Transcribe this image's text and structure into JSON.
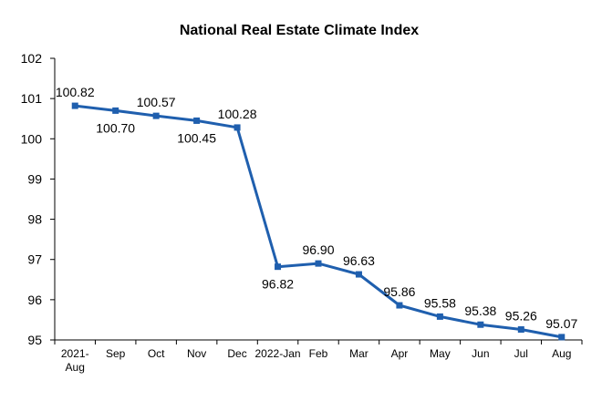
{
  "chart_data": {
    "type": "line",
    "title": "National Real Estate Climate Index",
    "xlabel": "",
    "ylabel": "",
    "ylim": [
      95,
      102
    ],
    "yticks": [
      95,
      96,
      97,
      98,
      99,
      100,
      101,
      102
    ],
    "categories": [
      "2021-\nAug",
      "Sep",
      "Oct",
      "Nov",
      "Dec",
      "2022-Jan",
      "Feb",
      "Mar",
      "Apr",
      "May",
      "Jun",
      "Jul",
      "Aug"
    ],
    "series": [
      {
        "name": "",
        "values": [
          100.82,
          100.7,
          100.57,
          100.45,
          100.28,
          96.82,
          96.9,
          96.63,
          95.86,
          95.58,
          95.38,
          95.26,
          95.07
        ],
        "data_labels": [
          "100.82",
          "100.70",
          "100.57",
          "100.45",
          "100.28",
          "96.82",
          "96.90",
          "96.63",
          "95.86",
          "95.58",
          "95.38",
          "95.26",
          "95.07"
        ],
        "color": "#1f5fae"
      }
    ],
    "grid": false,
    "legend": "none"
  }
}
